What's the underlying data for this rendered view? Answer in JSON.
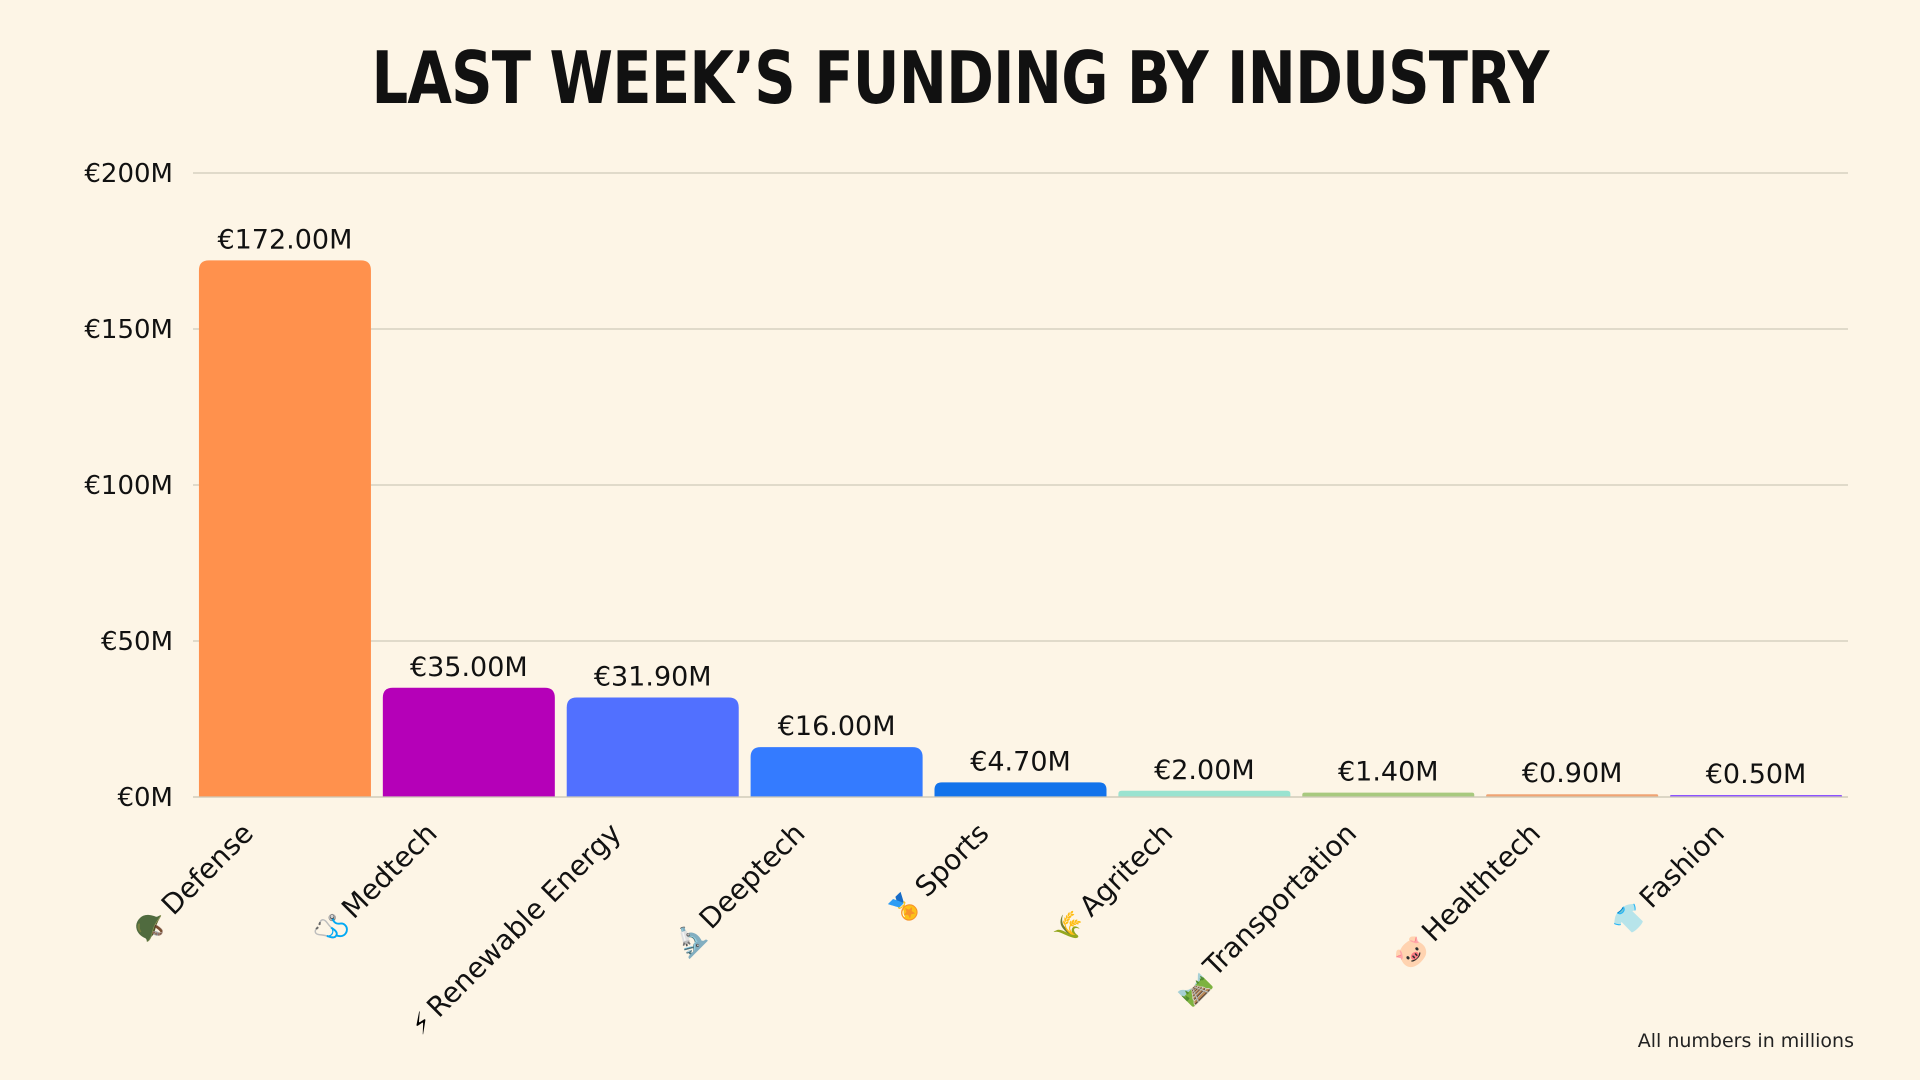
{
  "chart_data": {
    "type": "bar",
    "title": "LAST WEEK’S FUNDING BY INDUSTRY",
    "categories": [
      "Defense",
      "Medtech",
      "Renewable Energy",
      "Deeptech",
      "Sports",
      "Agritech",
      "Transportation",
      "Healthtech",
      "Fashion"
    ],
    "icons": [
      "🪖",
      "🩺",
      "⚡",
      "🔬",
      "🏅",
      "🌾",
      "🛤️",
      "🐷",
      "👕"
    ],
    "values": [
      172.0,
      35.0,
      31.9,
      16.0,
      4.7,
      2.0,
      1.4,
      0.9,
      0.5
    ],
    "value_labels": [
      "€172.00M",
      "€35.00M",
      "€31.90M",
      "€16.00M",
      "€4.70M",
      "€2.00M",
      "€1.40M",
      "€0.90M",
      "€0.50M"
    ],
    "colors": [
      "#FF914D",
      "#B500B8",
      "#5170FF",
      "#347BFF",
      "#1273EB",
      "#9AE3D0",
      "#A8C97F",
      "#F0A373",
      "#8C52FF"
    ],
    "yticks": [
      0,
      50,
      100,
      150,
      200
    ],
    "ytick_labels": [
      "€0M",
      "€50M",
      "€100M",
      "€150M",
      "€200M"
    ],
    "ylim": [
      0,
      200
    ],
    "xlabel": "",
    "ylabel": "",
    "grid": true,
    "gridline_color": "#CFCAB9",
    "text_color": "#111111"
  },
  "footnote": "All numbers in millions"
}
